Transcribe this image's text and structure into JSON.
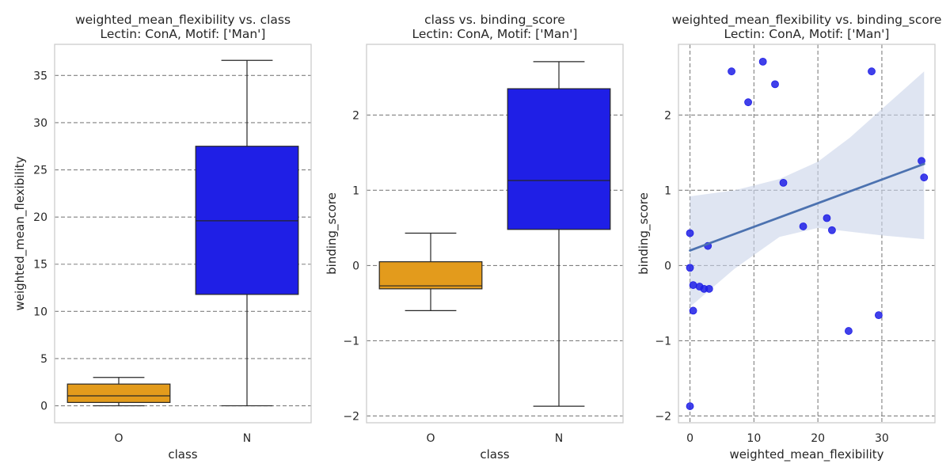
{
  "chart_data": [
    {
      "type": "box",
      "title": "weighted_mean_flexibility vs. class",
      "subtitle": "Lectin: ConA, Motif: ['Man']",
      "xlabel": "class",
      "ylabel": "weighted_mean_flexibility",
      "categories": [
        "O",
        "N"
      ],
      "ylim": [
        -1.8,
        38.3
      ],
      "yticks": [
        0,
        5,
        10,
        15,
        20,
        25,
        30,
        35
      ],
      "grid": "y-dashed",
      "boxes": [
        {
          "category": "O",
          "color": "#E39B1C",
          "whisker_low": 0.0,
          "q1": 0.35,
          "median": 1.05,
          "q3": 2.3,
          "whisker_high": 3.0
        },
        {
          "category": "N",
          "color": "#1F1FE6",
          "whisker_low": 0.0,
          "q1": 11.8,
          "median": 19.6,
          "q3": 27.5,
          "whisker_high": 36.6
        }
      ]
    },
    {
      "type": "box",
      "title": "class vs. binding_score",
      "subtitle": "Lectin: ConA, Motif: ['Man']",
      "xlabel": "class",
      "ylabel": "binding_score",
      "categories": [
        "O",
        "N"
      ],
      "ylim": [
        -2.09,
        2.94
      ],
      "yticks": [
        -2,
        -1,
        0,
        1,
        2
      ],
      "ytick_labels": [
        "−2",
        "−1",
        "0",
        "1",
        "2"
      ],
      "grid": "y-dashed",
      "boxes": [
        {
          "category": "O",
          "color": "#E39B1C",
          "whisker_low": -0.6,
          "q1": -0.31,
          "median": -0.27,
          "q3": 0.05,
          "whisker_high": 0.43
        },
        {
          "category": "N",
          "color": "#1F1FE6",
          "whisker_low": -1.87,
          "q1": 0.48,
          "median": 1.13,
          "q3": 2.35,
          "whisker_high": 2.71
        }
      ]
    },
    {
      "type": "scatter",
      "title": "weighted_mean_flexibility vs. binding_score",
      "subtitle": "Lectin: ConA, Motif: ['Man']",
      "xlabel": "weighted_mean_flexibility",
      "ylabel": "binding_score",
      "xlim": [
        -1.8,
        38.3
      ],
      "ylim": [
        -2.09,
        2.94
      ],
      "xticks": [
        0,
        10,
        20,
        30
      ],
      "yticks": [
        -2,
        -1,
        0,
        1,
        2
      ],
      "ytick_labels": [
        "−2",
        "−1",
        "0",
        "1",
        "2"
      ],
      "grid": "both-dashed",
      "point_color": "#1F1FE6",
      "fit_color": "#4C72B0",
      "band_color": "#C9D4EA",
      "points": [
        {
          "x": 0.0,
          "y": 0.43
        },
        {
          "x": 0.0,
          "y": -0.03
        },
        {
          "x": 0.0,
          "y": -1.87
        },
        {
          "x": 0.5,
          "y": -0.26
        },
        {
          "x": 0.5,
          "y": -0.6
        },
        {
          "x": 1.5,
          "y": -0.28
        },
        {
          "x": 2.2,
          "y": -0.31
        },
        {
          "x": 3.0,
          "y": -0.31
        },
        {
          "x": 2.8,
          "y": 0.26
        },
        {
          "x": 6.5,
          "y": 2.58
        },
        {
          "x": 9.1,
          "y": 2.17
        },
        {
          "x": 11.4,
          "y": 2.71
        },
        {
          "x": 13.3,
          "y": 2.41
        },
        {
          "x": 14.6,
          "y": 1.1
        },
        {
          "x": 17.7,
          "y": 0.52
        },
        {
          "x": 21.4,
          "y": 0.63
        },
        {
          "x": 22.2,
          "y": 0.47
        },
        {
          "x": 24.8,
          "y": -0.87
        },
        {
          "x": 28.4,
          "y": 2.58
        },
        {
          "x": 29.5,
          "y": -0.66
        },
        {
          "x": 36.2,
          "y": 1.39
        },
        {
          "x": 36.6,
          "y": 1.17
        }
      ],
      "fit_line": {
        "x": [
          0,
          36.6
        ],
        "y": [
          0.2,
          1.35
        ]
      },
      "band_upper": [
        {
          "x": 0,
          "y": 0.92
        },
        {
          "x": 7,
          "y": 1.0
        },
        {
          "x": 14,
          "y": 1.15
        },
        {
          "x": 20,
          "y": 1.38
        },
        {
          "x": 25,
          "y": 1.7
        },
        {
          "x": 30,
          "y": 2.08
        },
        {
          "x": 36.6,
          "y": 2.58
        }
      ],
      "band_lower": [
        {
          "x": 0,
          "y": -0.55
        },
        {
          "x": 7,
          "y": -0.04
        },
        {
          "x": 14,
          "y": 0.38
        },
        {
          "x": 20,
          "y": 0.5
        },
        {
          "x": 25,
          "y": 0.45
        },
        {
          "x": 30,
          "y": 0.4
        },
        {
          "x": 36.6,
          "y": 0.35
        }
      ]
    }
  ]
}
